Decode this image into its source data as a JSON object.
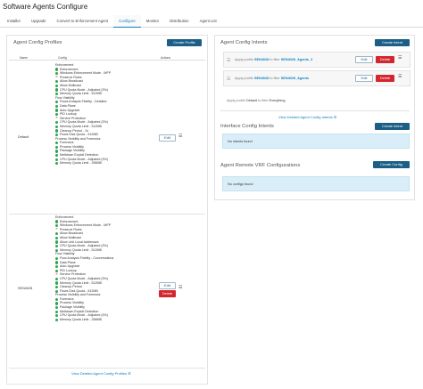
{
  "page": {
    "title": "Software Agents Configure"
  },
  "tabs": [
    {
      "label": "Installer",
      "active": false
    },
    {
      "label": "Upgrade",
      "active": false
    },
    {
      "label": "Convert to Enforcement Agent",
      "active": false
    },
    {
      "label": "Configure",
      "active": true
    },
    {
      "label": "Monitor",
      "active": false
    },
    {
      "label": "Distribution",
      "active": false
    },
    {
      "label": "Agent List",
      "active": false
    }
  ],
  "profiles": {
    "title": "Agent Config Profiles",
    "create_button": "Create Profile",
    "columns": [
      "Name",
      "Config",
      "Actions"
    ],
    "rows": [
      {
        "name": "Default",
        "edit": "Edit",
        "config": [
          {
            "type": "head",
            "text": "Enforcement"
          },
          {
            "type": "ok",
            "text": "Enforcement"
          },
          {
            "type": "ok",
            "text": "Windows Enforcement Mode - WFP"
          },
          {
            "type": "no",
            "text": "Preserve Rules"
          },
          {
            "type": "ok",
            "text": "Allow Broadcast"
          },
          {
            "type": "ok",
            "text": "Allow Multicast"
          },
          {
            "type": "ok",
            "text": "CPU Quota Mode - Adjusted (3%)"
          },
          {
            "type": "ok",
            "text": "Memory Quota Limit - 512MB"
          },
          {
            "type": "head",
            "text": "Flow Visibility"
          },
          {
            "type": "ok",
            "text": "Flows Analysis Fidelity - Detailed"
          },
          {
            "type": "ok",
            "text": "Data Plane"
          },
          {
            "type": "ok",
            "text": "Auto-Upgrade"
          },
          {
            "type": "ok",
            "text": "PID Lookup"
          },
          {
            "type": "no",
            "text": "Service Protection"
          },
          {
            "type": "ok",
            "text": "CPU Quota Mode - Adjusted (3%)"
          },
          {
            "type": "ok",
            "text": "Memory Quota Limit - 512MB"
          },
          {
            "type": "ok",
            "text": "Cleanup Period - 1h"
          },
          {
            "type": "ok",
            "text": "Flows Disk Quota - 512MB"
          },
          {
            "type": "head",
            "text": "Process Visibility and Forensics"
          },
          {
            "type": "ok",
            "text": "Forensics"
          },
          {
            "type": "ok",
            "text": "Process Visibility"
          },
          {
            "type": "ok",
            "text": "Package Visibility"
          },
          {
            "type": "ok",
            "text": "Meltdown Exploit Detection"
          },
          {
            "type": "ok",
            "text": "CPU Quota Mode - Adjusted (3%)"
          },
          {
            "type": "ok",
            "text": "Memory Quota Limit - 256MB"
          }
        ]
      },
      {
        "name": "SEN4028",
        "edit": "Edit",
        "delete": "Delete",
        "config": [
          {
            "type": "head",
            "text": "Enforcement"
          },
          {
            "type": "ok",
            "text": "Enforcement"
          },
          {
            "type": "ok",
            "text": "Windows Enforcement Mode - WFP"
          },
          {
            "type": "no",
            "text": "Preserve Rules"
          },
          {
            "type": "ok",
            "text": "Allow Broadcast"
          },
          {
            "type": "ok",
            "text": "Allow Multicast"
          },
          {
            "type": "ok",
            "text": "Allow Link Local Addresses"
          },
          {
            "type": "ok",
            "text": "CPU Quota Mode - Adjusted (3%)"
          },
          {
            "type": "ok",
            "text": "Memory Quota Limit - 512MB"
          },
          {
            "type": "head",
            "text": "Flow Visibility"
          },
          {
            "type": "ok",
            "text": "Flow Analysis Fidelity - Conversations"
          },
          {
            "type": "ok",
            "text": "Data Plane"
          },
          {
            "type": "ok",
            "text": "Auto-Upgrade"
          },
          {
            "type": "ok",
            "text": "PID Lookup"
          },
          {
            "type": "no",
            "text": "Service Protection"
          },
          {
            "type": "ok",
            "text": "CPU Quota Mode - Adjusted (3%)"
          },
          {
            "type": "ok",
            "text": "Memory Quota Limit - 512MB"
          },
          {
            "type": "ok",
            "text": "Cleanup Period"
          },
          {
            "type": "ok",
            "text": "Flows Disk Quota - 512MB"
          },
          {
            "type": "head",
            "text": "Process Visibility and Forensics"
          },
          {
            "type": "ok",
            "text": "Forensics"
          },
          {
            "type": "ok",
            "text": "Process Visibility"
          },
          {
            "type": "ok",
            "text": "Package Visibility"
          },
          {
            "type": "ok",
            "text": "Meltdown Exploit Detection"
          },
          {
            "type": "ok",
            "text": "CPU Quota Mode - Adjusted (3%)"
          },
          {
            "type": "ok",
            "text": "Memory Quota Limit - 256MB"
          }
        ]
      }
    ],
    "view_deleted": "View Deleted Agent Config Profiles"
  },
  "intents": {
    "title": "Agent Config Intents",
    "create_button": "Create Intent",
    "rows": [
      {
        "prefix": "Apply profile",
        "profile": "SEN4028",
        "mid": "to filter",
        "filter": "SEN4028_Agents_2",
        "edit": "Edit",
        "delete": "Delete"
      },
      {
        "prefix": "Apply profile",
        "profile": "SEN4028",
        "mid": "to filter",
        "filter": "SEN4028_Agents",
        "edit": "Edit",
        "delete": "Delete"
      }
    ],
    "default_prefix": "Apply profile",
    "default_profile": "Default",
    "default_mid": "to filter",
    "default_filter": "Everything",
    "view_deleted": "View Deleted Agent Config Intents"
  },
  "interface_intents": {
    "title": "Interface Config Intents",
    "create_button": "Create Intent",
    "empty": "No intents found"
  },
  "vrf": {
    "title": "Agent Remote VRF Configurations",
    "create_button": "Create Config",
    "empty": "No configs found"
  }
}
